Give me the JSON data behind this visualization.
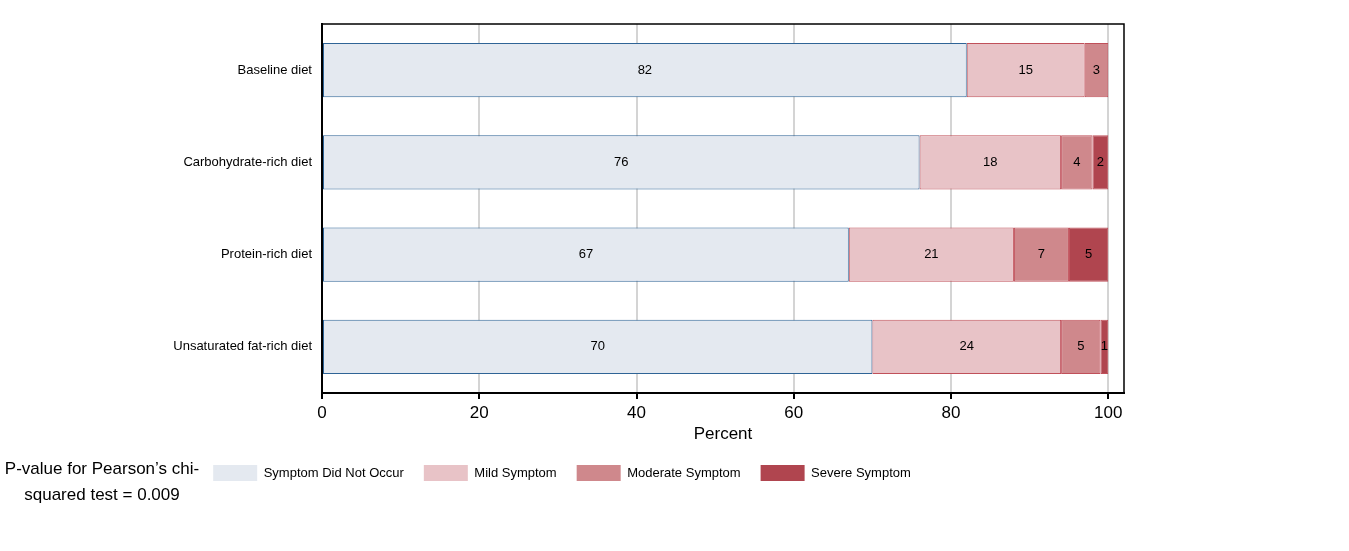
{
  "chart_data": {
    "type": "bar",
    "orientation": "horizontal",
    "stacked": true,
    "categories": [
      "Baseline diet",
      "Carbohydrate-rich diet",
      "Protein-rich diet",
      "Unsaturated fat-rich diet"
    ],
    "series": [
      {
        "name": "Symptom Did Not Occur",
        "color": "#e4e9f0",
        "values": [
          82,
          76,
          67,
          70
        ]
      },
      {
        "name": "Mild Symptom",
        "color": "#e8c3c7",
        "values": [
          15,
          18,
          21,
          24
        ]
      },
      {
        "name": "Moderate Symptom",
        "color": "#cf888c",
        "values": [
          3,
          4,
          7,
          5
        ]
      },
      {
        "name": "Severe Symptom",
        "color": "#b0454f",
        "values": [
          null,
          2,
          5,
          1
        ]
      }
    ],
    "xlabel": "Percent",
    "xlim": [
      0,
      102
    ],
    "xticks": [
      0,
      20,
      40,
      60,
      80,
      100
    ],
    "grid": "x",
    "legend": "bottom",
    "data_labels": true,
    "annotations": [
      "P-value for Pearson’s chi-squared test = 0.009"
    ]
  }
}
